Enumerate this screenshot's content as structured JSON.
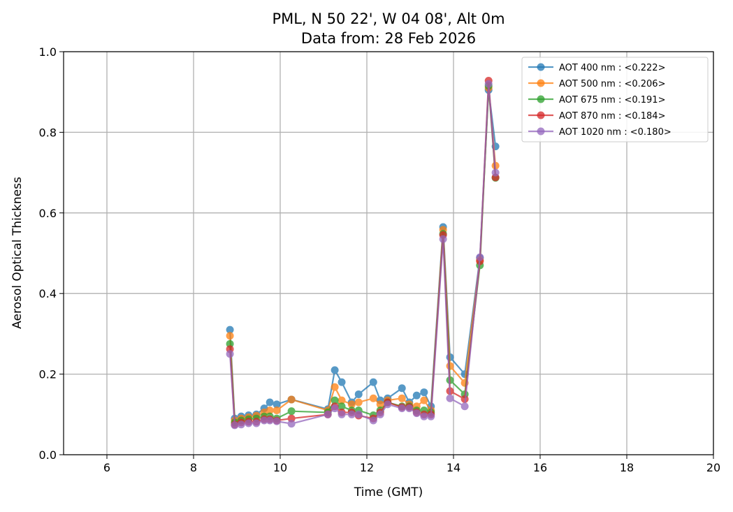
{
  "chart_data": {
    "type": "line",
    "title": "PML, N 50 22', W 04 08', Alt 0m",
    "subtitle": "Data from: 28 Feb 2026",
    "xlabel": "Time (GMT)",
    "ylabel": "Aerosol Optical Thickness",
    "xlim": [
      5,
      20
    ],
    "ylim": [
      0,
      1.0
    ],
    "xticks": [
      6,
      8,
      10,
      12,
      14,
      16,
      18,
      20
    ],
    "xtick_labels": [
      "6",
      "8",
      "10",
      "12",
      "14",
      "16",
      "18",
      "20"
    ],
    "yticks": [
      0,
      0.2,
      0.4,
      0.6,
      0.8,
      1.0
    ],
    "ytick_labels": [
      "0.0",
      "0.2",
      "0.4",
      "0.6",
      "0.8",
      "1.0"
    ],
    "grid": true,
    "legend_position": "top-right",
    "x": [
      8.84,
      8.95,
      9.1,
      9.27,
      9.45,
      9.63,
      9.76,
      9.92,
      10.26,
      11.1,
      11.26,
      11.42,
      11.65,
      11.81,
      12.15,
      12.31,
      12.48,
      12.81,
      12.98,
      13.15,
      13.32,
      13.48,
      13.76,
      13.92,
      14.26,
      14.61,
      14.81,
      14.97
    ],
    "series": [
      {
        "name": "AOT 400 nm : <0.222>",
        "color": "#1f77b4",
        "values": [
          0.31,
          0.09,
          0.095,
          0.098,
          0.1,
          0.115,
          0.13,
          0.125,
          0.137,
          0.113,
          0.21,
          0.18,
          0.13,
          0.15,
          0.18,
          0.135,
          0.14,
          0.165,
          0.13,
          0.147,
          0.155,
          0.12,
          0.565,
          0.242,
          0.2,
          0.488,
          0.905,
          0.765
        ]
      },
      {
        "name": "AOT 500 nm : <0.206>",
        "color": "#ff7f0e",
        "values": [
          0.295,
          0.085,
          0.09,
          0.093,
          0.097,
          0.105,
          0.11,
          0.11,
          0.137,
          0.11,
          0.168,
          0.135,
          0.125,
          0.13,
          0.14,
          0.125,
          0.135,
          0.14,
          0.125,
          0.12,
          0.135,
          0.11,
          0.558,
          0.22,
          0.178,
          0.483,
          0.91,
          0.717
        ]
      },
      {
        "name": "AOT 675 nm : <0.191>",
        "color": "#2ca02c",
        "values": [
          0.275,
          0.08,
          0.085,
          0.088,
          0.09,
          0.095,
          0.095,
          0.09,
          0.108,
          0.105,
          0.135,
          0.12,
          0.11,
          0.11,
          0.098,
          0.11,
          0.13,
          0.12,
          0.12,
          0.11,
          0.11,
          0.105,
          0.548,
          0.185,
          0.15,
          0.47,
          0.915,
          0.687
        ]
      },
      {
        "name": "AOT 870 nm : <0.184>",
        "color": "#d62728",
        "values": [
          0.262,
          0.075,
          0.08,
          0.082,
          0.082,
          0.088,
          0.088,
          0.085,
          0.09,
          0.1,
          0.12,
          0.105,
          0.105,
          0.097,
          0.09,
          0.105,
          0.13,
          0.118,
          0.118,
          0.105,
          0.1,
          0.1,
          0.545,
          0.158,
          0.138,
          0.48,
          0.928,
          0.688
        ]
      },
      {
        "name": "AOT 1020 nm : <0.180>",
        "color": "#9467bd",
        "values": [
          0.25,
          0.073,
          0.075,
          0.078,
          0.078,
          0.085,
          0.085,
          0.083,
          0.077,
          0.1,
          0.115,
          0.1,
          0.1,
          0.1,
          0.085,
          0.1,
          0.125,
          0.115,
          0.115,
          0.103,
          0.095,
          0.095,
          0.535,
          0.14,
          0.12,
          0.49,
          0.92,
          0.7
        ]
      }
    ]
  }
}
